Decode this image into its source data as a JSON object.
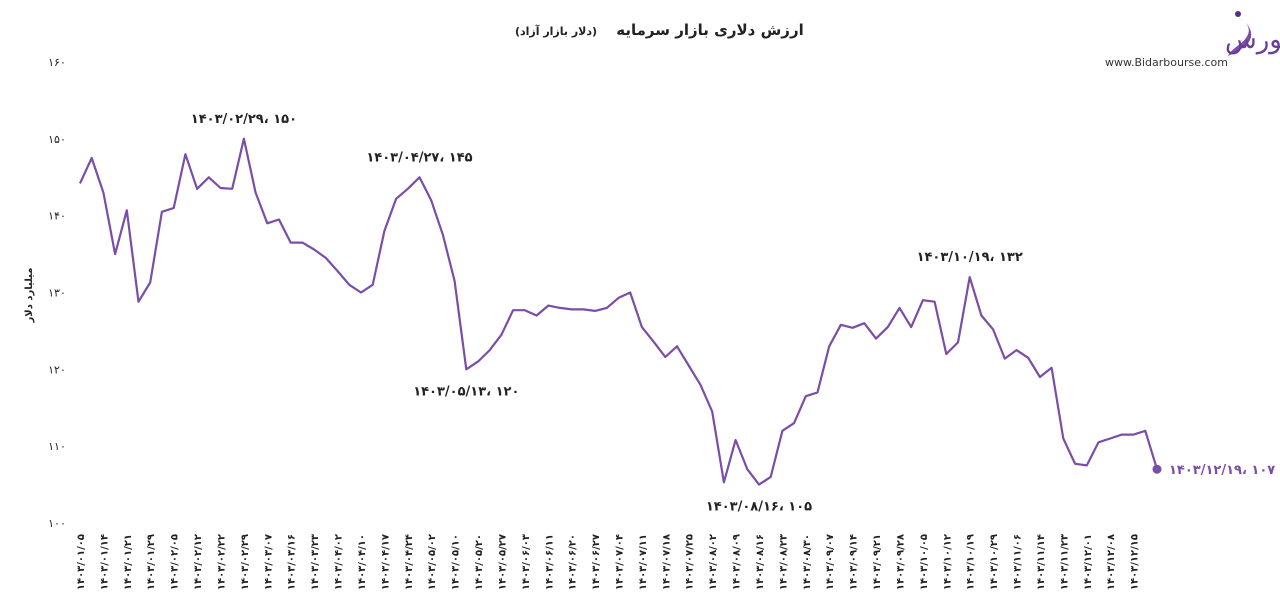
{
  "chart_data": {
    "type": "line",
    "title": "ارزش دلاری بازار سرمایه",
    "subtitle": "(دلار بازار آزاد)",
    "y_label": "میلیارد دلار",
    "logo_text": "بیدار بورس",
    "website": "www.Bidarbourse.com",
    "color": "#7a4ea6",
    "ylim": [
      100,
      160
    ],
    "yticks": [
      {
        "value": 100,
        "label": "۱۰۰"
      },
      {
        "value": 110,
        "label": "۱۱۰"
      },
      {
        "value": 120,
        "label": "۱۲۰"
      },
      {
        "value": 130,
        "label": "۱۳۰"
      },
      {
        "value": 140,
        "label": "۱۴۰"
      },
      {
        "value": 150,
        "label": "۱۵۰"
      },
      {
        "value": 160,
        "label": "۱۶۰"
      }
    ],
    "categories": [
      "۱۴۰۳/۰۱/۰۵",
      null,
      "۱۴۰۳/۰۱/۱۴",
      null,
      "۱۴۰۳/۰۱/۲۱",
      null,
      "۱۴۰۳/۰۱/۲۹",
      null,
      "۱۴۰۳/۰۲/۰۵",
      null,
      "۱۴۰۳/۰۲/۱۲",
      null,
      "۱۴۰۳/۰۲/۲۲",
      null,
      "۱۴۰۳/۰۲/۲۹",
      null,
      "۱۴۰۳/۰۳/۰۷",
      null,
      "۱۴۰۳/۰۳/۱۶",
      null,
      "۱۴۰۳/۰۳/۲۳",
      null,
      "۱۴۰۳/۰۴/۰۲",
      null,
      "۱۴۰۳/۰۴/۱۰",
      null,
      "۱۴۰۳/۰۴/۱۷",
      null,
      "۱۴۰۳/۰۴/۲۴",
      null,
      "۱۴۰۳/۰۵/۰۲",
      null,
      "۱۴۰۳/۰۵/۱۰",
      null,
      "۱۴۰۳/۰۵/۲۰",
      null,
      "۱۴۰۳/۰۵/۲۷",
      null,
      "۱۴۰۳/۰۶/۰۳",
      null,
      "۱۴۰۳/۰۶/۱۱",
      null,
      "۱۴۰۳/۰۶/۲۰",
      null,
      "۱۴۰۳/۰۶/۲۷",
      null,
      "۱۴۰۳/۰۷/۰۴",
      null,
      "۱۴۰۳/۰۷/۱۱",
      null,
      "۱۴۰۳/۰۷/۱۸",
      null,
      "۱۴۰۳/۰۷/۲۵",
      null,
      "۱۴۰۳/۰۸/۰۲",
      null,
      "۱۴۰۳/۰۸/۰۹",
      null,
      "۱۴۰۳/۰۸/۱۶",
      null,
      "۱۴۰۳/۰۸/۲۳",
      null,
      "۱۴۰۳/۰۸/۳۰",
      null,
      "۱۴۰۳/۰۹/۰۷",
      null,
      "۱۴۰۳/۰۹/۱۴",
      null,
      "۱۴۰۳/۰۹/۲۱",
      null,
      "۱۴۰۳/۰۹/۲۸",
      null,
      "۱۴۰۳/۱۰/۰۵",
      null,
      "۱۴۰۳/۱۰/۱۲",
      null,
      "۱۴۰۳/۱۰/۱۹",
      null,
      "۱۴۰۳/۱۰/۲۹",
      null,
      "۱۴۰۳/۱۱/۰۶",
      null,
      "۱۴۰۳/۱۱/۱۴",
      null,
      "۱۴۰۳/۱۱/۲۳",
      null,
      "۱۴۰۳/۱۲/۰۱",
      null,
      "۱۴۰۳/۱۲/۰۸",
      null,
      "۱۴۰۳/۱۲/۱۵",
      null,
      null
    ],
    "values": [
      144.2,
      147.5,
      143,
      135,
      140.7,
      128.8,
      131.3,
      140.5,
      141,
      148,
      143.5,
      145,
      143.6,
      143.5,
      150,
      143,
      139,
      139.5,
      136.5,
      136.5,
      135.6,
      134.5,
      132.8,
      131,
      130,
      131,
      138,
      142.2,
      143.5,
      145,
      142,
      137.5,
      131.5,
      120,
      121,
      122.5,
      124.5,
      127.7,
      127.7,
      127,
      128.3,
      128,
      127.8,
      127.8,
      127.6,
      128,
      129.3,
      130,
      125.5,
      123.6,
      121.6,
      123,
      120.5,
      118,
      114.5,
      105.3,
      110.8,
      107,
      105,
      106,
      112,
      113,
      116.5,
      117,
      123,
      125.8,
      125.4,
      126,
      124,
      125.5,
      128,
      125.5,
      129,
      128.8,
      122,
      123.5,
      132,
      127,
      125.2,
      121.4,
      122.5,
      121.5,
      119,
      120.2,
      111,
      107.7,
      107.5,
      110.5,
      111,
      111.5,
      111.5,
      112,
      107
    ],
    "value_labels": [
      null,
      null,
      null,
      null,
      null,
      null,
      null,
      null,
      null,
      null,
      null,
      null,
      null,
      null,
      "۱۴۰۳/۰۲/۲۹، ۱۵۰",
      null,
      null,
      null,
      null,
      null,
      null,
      null,
      null,
      null,
      null,
      null,
      null,
      null,
      null,
      "۱۴۰۳/۰۴/۲۷، ۱۴۵",
      null,
      null,
      null,
      "۱۴۰۳/۰۵/۱۳، ۱۲۰",
      null,
      null,
      null,
      null,
      null,
      null,
      null,
      null,
      null,
      null,
      null,
      null,
      null,
      null,
      null,
      null,
      null,
      null,
      null,
      null,
      null,
      null,
      null,
      null,
      "۱۴۰۳/۰۸/۱۶، ۱۰۵",
      null,
      null,
      null,
      null,
      null,
      null,
      null,
      null,
      null,
      null,
      null,
      null,
      null,
      null,
      null,
      null,
      null,
      "۱۴۰۳/۱۰/۱۹، ۱۳۲",
      null,
      null,
      null,
      null,
      null,
      null,
      null,
      null,
      null,
      null,
      null,
      null,
      null,
      null,
      null,
      "۱۴۰۳/۱۲/۱۹، ۱۰۷"
    ]
  }
}
